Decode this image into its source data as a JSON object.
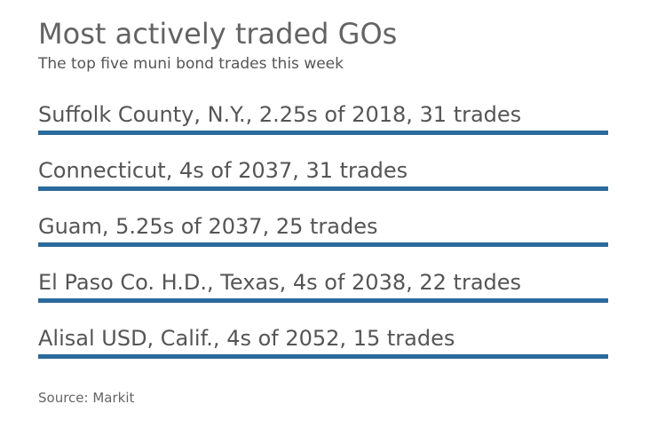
{
  "chart_data": {
    "type": "bar",
    "title": "Most actively traded GOs",
    "subtitle": "The top five muni bond trades this week",
    "source": "Source: Markit",
    "bar_color": "#2b6a9d",
    "value_label": "trades",
    "categories": [
      "Suffolk County, N.Y., 2.25s of 2018, 31 trades",
      "Connecticut, 4s of 2037, 31 trades",
      "Guam, 5.25s of 2037, 25 trades",
      "El Paso Co. H.D., Texas, 4s of 2038, 22 trades",
      "Alisal USD, Calif., 4s of 2052, 15 trades"
    ],
    "values": [
      31,
      31,
      25,
      22,
      15
    ]
  }
}
